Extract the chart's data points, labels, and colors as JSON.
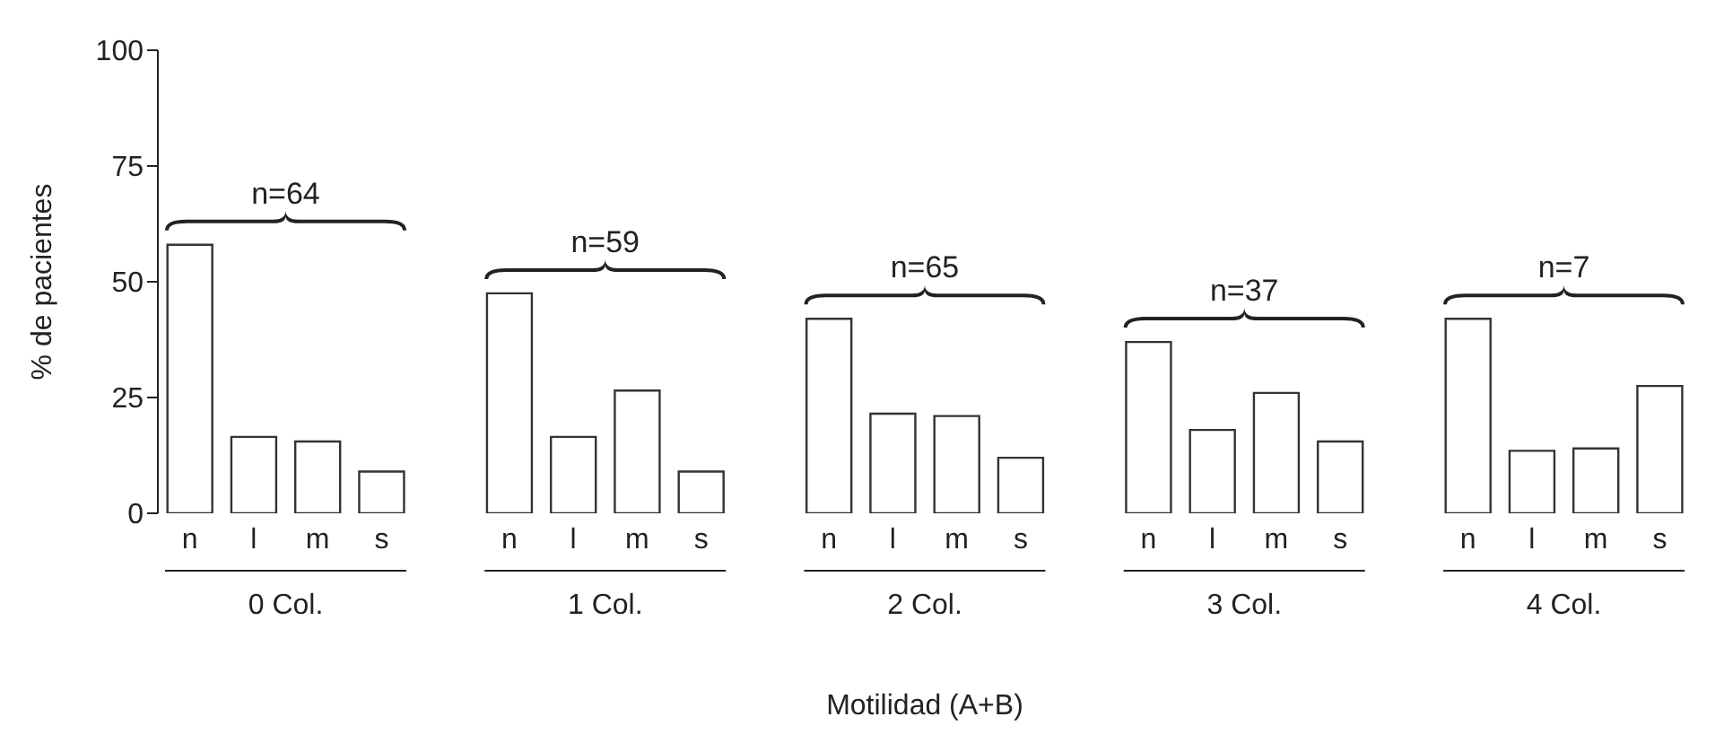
{
  "chart_data": {
    "type": "bar",
    "ylabel": "% de pacientes",
    "xlabel": "Motilidad (A+B)",
    "categories": [
      "n",
      "l",
      "m",
      "s",
      null,
      "n",
      "l",
      "m",
      "s",
      null,
      "n",
      "l",
      "m",
      "s",
      null,
      "n",
      "l",
      "m",
      "s",
      null,
      "n",
      "l",
      "m",
      "s"
    ],
    "values": [
      58,
      16.5,
      15.5,
      9,
      null,
      47.5,
      16.5,
      26.5,
      9,
      null,
      42,
      21.5,
      21,
      12,
      null,
      37,
      18,
      26,
      15.5,
      null,
      42,
      13.5,
      14,
      27.5
    ],
    "color": "#ffffff",
    "ylim": [
      0,
      100
    ],
    "yticks": [
      0,
      25,
      50,
      75,
      100
    ],
    "grid": false,
    "legend": false,
    "annotations": [
      "n=64",
      "n=59",
      "n=65",
      "n=37",
      "n=7",
      "0 Col.",
      "1 Col.",
      "2 Col.",
      "3 Col.",
      "4 Col."
    ]
  }
}
